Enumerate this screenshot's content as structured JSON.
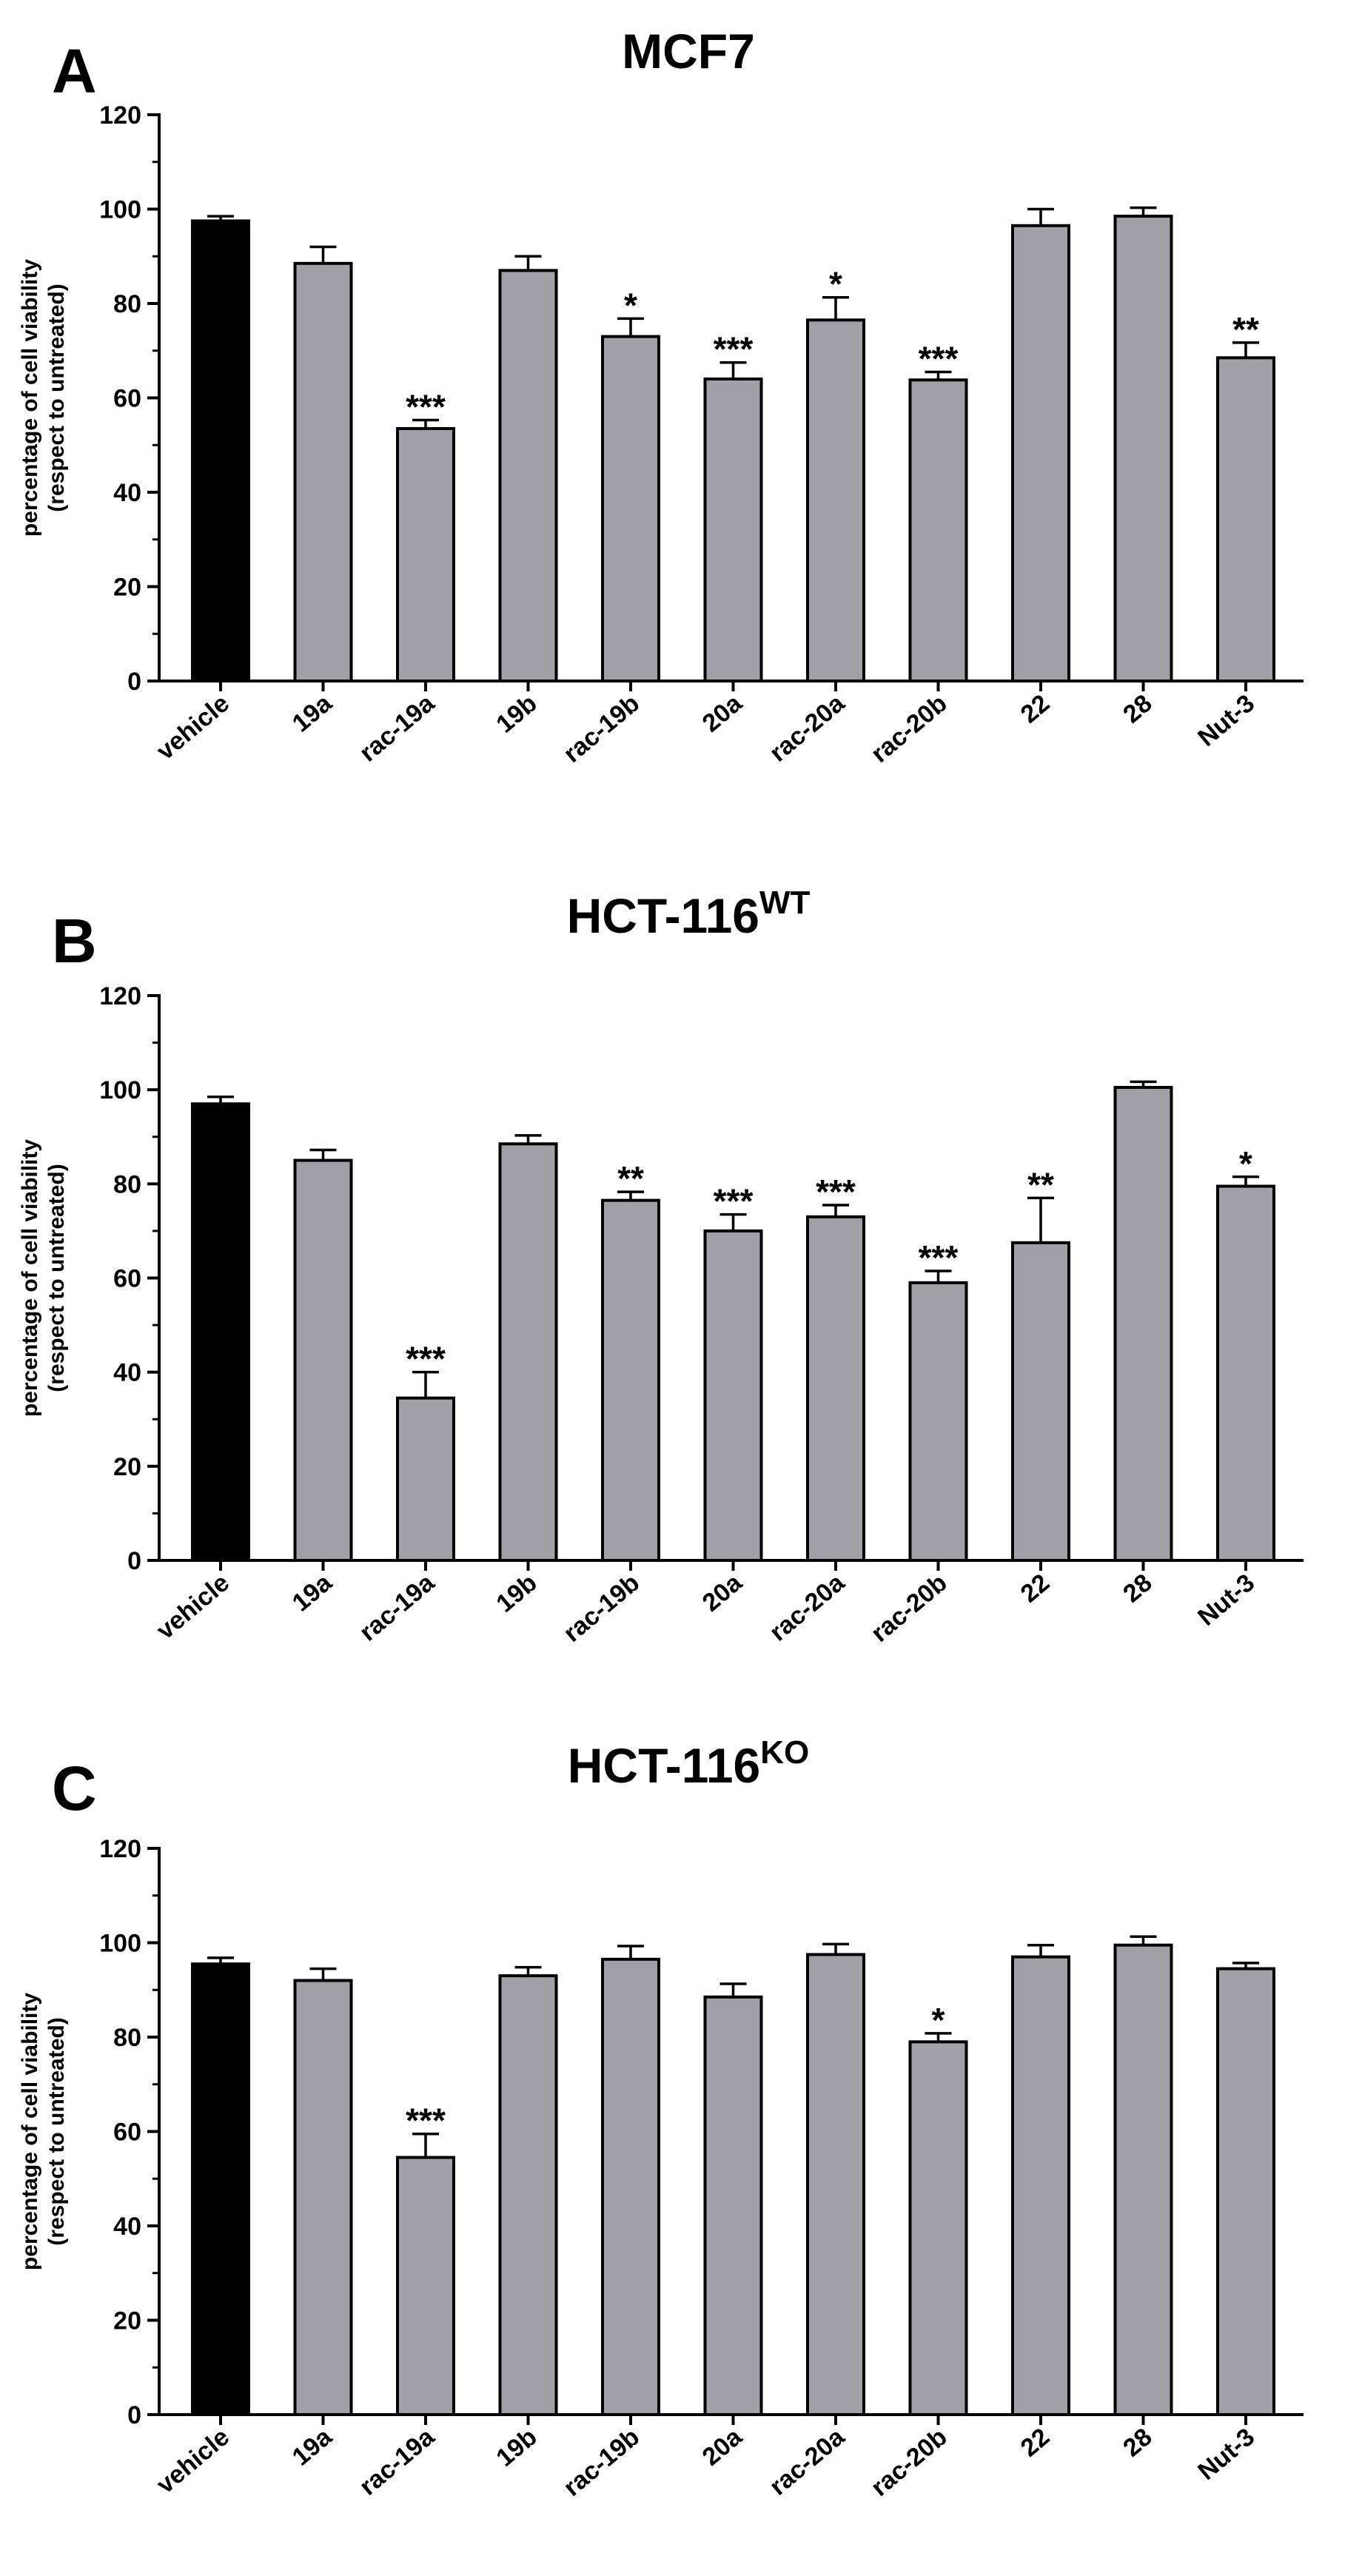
{
  "colors": {
    "vehicle_bar": "#000000",
    "treatment_bar": "#a0a0a6",
    "axis": "#000000"
  },
  "chart_data": [
    {
      "type": "bar",
      "panel_letter": "A",
      "title": "MCF7",
      "title_superscript": "",
      "ylabel_line1": "percentage of cell viability",
      "ylabel_line2": "(respect to untreated)",
      "xlabel": "",
      "ylim": [
        0,
        120
      ],
      "yticks": [
        0,
        20,
        40,
        60,
        80,
        100,
        120
      ],
      "categories": [
        "vehicle",
        "19a",
        "rac-19a",
        "19b",
        "rac-19b",
        "20a",
        "rac-20a",
        "rac-20b",
        "22",
        "28",
        "Nut-3"
      ],
      "values": [
        97.5,
        88.5,
        53.5,
        87,
        73,
        64,
        76.5,
        63.8,
        96.5,
        98.5,
        68.5
      ],
      "errors": [
        1,
        3.5,
        1.8,
        3,
        3.8,
        3.5,
        4.8,
        1.7,
        3.5,
        1.8,
        3.2
      ],
      "significance": [
        "",
        "",
        "***",
        "",
        "*",
        "***",
        "*",
        "***",
        "",
        "",
        "**"
      ]
    },
    {
      "type": "bar",
      "panel_letter": "B",
      "title": "HCT-116",
      "title_superscript": "WT",
      "ylabel_line1": "percentage of cell viability",
      "ylabel_line2": "(respect to untreated)",
      "xlabel": "",
      "ylim": [
        0,
        120
      ],
      "yticks": [
        0,
        20,
        40,
        60,
        80,
        100,
        120
      ],
      "categories": [
        "vehicle",
        "19a",
        "rac-19a",
        "19b",
        "rac-19b",
        "20a",
        "rac-20a",
        "rac-20b",
        "22",
        "28",
        "Nut-3"
      ],
      "values": [
        97,
        85,
        34.5,
        88.5,
        76.5,
        70,
        73,
        59,
        67.5,
        100.5,
        79.5
      ],
      "errors": [
        1.5,
        2.2,
        5.5,
        1.8,
        1.8,
        3.5,
        2.5,
        2.5,
        9.5,
        1.2,
        2
      ],
      "significance": [
        "",
        "",
        "***",
        "",
        "**",
        "***",
        "***",
        "***",
        "**",
        "",
        "*"
      ]
    },
    {
      "type": "bar",
      "panel_letter": "C",
      "title": "HCT-116",
      "title_superscript": "KO",
      "ylabel_line1": "percentage of cell viability",
      "ylabel_line2": "(respect to untreated)",
      "xlabel": "",
      "ylim": [
        0,
        120
      ],
      "yticks": [
        0,
        20,
        40,
        60,
        80,
        100,
        120
      ],
      "categories": [
        "vehicle",
        "19a",
        "rac-19a",
        "19b",
        "rac-19b",
        "20a",
        "rac-20a",
        "rac-20b",
        "22",
        "28",
        "Nut-3"
      ],
      "values": [
        95.5,
        92,
        54.5,
        93,
        96.5,
        88.5,
        97.5,
        79,
        97,
        99.5,
        94.5
      ],
      "errors": [
        1.3,
        2.5,
        5,
        1.8,
        2.8,
        2.8,
        2.2,
        1.8,
        2.5,
        1.8,
        1.2
      ],
      "significance": [
        "",
        "",
        "***",
        "",
        "",
        "",
        "",
        "*",
        "",
        "",
        ""
      ]
    }
  ]
}
